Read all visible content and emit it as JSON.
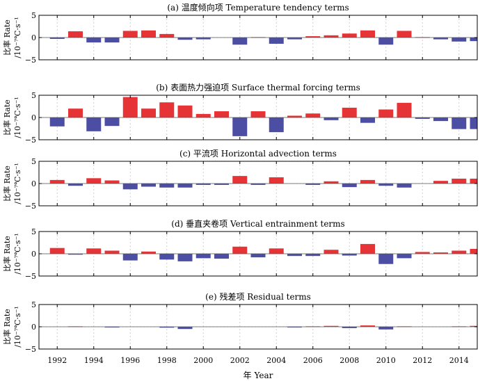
{
  "figure": {
    "x_axis_label": "年 Year",
    "y_axis_label_line1": "比率 Rate",
    "y_axis_label_line2": "/10⁻⁷℃·s⁻¹",
    "positive_color": "#e63336",
    "negative_color": "#4b4ea3"
  },
  "chart_data": [
    {
      "type": "bar",
      "title": "(a) 温度倾向项 Temperature tendency terms",
      "xlabel": "年 Year",
      "ylabel": "比率 Rate /10⁻⁷℃·s⁻¹",
      "ylim": [
        -5,
        5
      ],
      "yticks": [
        -5,
        0,
        5
      ],
      "xlim": [
        1991,
        2015
      ],
      "xticks": [
        1992,
        1994,
        1996,
        1998,
        2000,
        2002,
        2004,
        2006,
        2008,
        2010,
        2012,
        2014
      ],
      "grid": true,
      "x": [
        1992,
        1993,
        1994,
        1995,
        1996,
        1997,
        1998,
        1999,
        2000,
        2001,
        2002,
        2003,
        2004,
        2005,
        2006,
        2007,
        2008,
        2009,
        2010,
        2011,
        2012,
        2013,
        2014,
        2015
      ],
      "values": [
        -0.3,
        1.4,
        -1.1,
        -1.1,
        1.5,
        1.6,
        0.8,
        -0.5,
        -0.4,
        0.0,
        -1.6,
        0.1,
        -1.4,
        -0.4,
        0.3,
        0.5,
        0.9,
        1.6,
        -1.6,
        1.5,
        0.1,
        -0.4,
        -0.9,
        -0.8
      ]
    },
    {
      "type": "bar",
      "title": "(b) 表面热力强迫项 Surface thermal forcing terms",
      "xlabel": "年 Year",
      "ylabel": "比率 Rate /10⁻⁷℃·s⁻¹",
      "ylim": [
        -5,
        5
      ],
      "yticks": [
        -5,
        0,
        5
      ],
      "xlim": [
        1991,
        2015
      ],
      "xticks": [
        1992,
        1994,
        1996,
        1998,
        2000,
        2002,
        2004,
        2006,
        2008,
        2010,
        2012,
        2014
      ],
      "grid": true,
      "x": [
        1992,
        1993,
        1994,
        1995,
        1996,
        1997,
        1998,
        1999,
        2000,
        2001,
        2002,
        2003,
        2004,
        2005,
        2006,
        2007,
        2008,
        2009,
        2010,
        2011,
        2012,
        2013,
        2014,
        2015
      ],
      "values": [
        -2.0,
        2.0,
        -3.1,
        -1.9,
        4.6,
        2.0,
        3.4,
        2.7,
        0.8,
        1.4,
        -4.2,
        1.4,
        -3.3,
        0.4,
        0.9,
        -0.6,
        2.2,
        -1.2,
        1.8,
        3.3,
        -0.3,
        -0.8,
        -2.6,
        -2.6
      ]
    },
    {
      "type": "bar",
      "title": "(c) 平流项 Horizontal advection terms",
      "xlabel": "年 Year",
      "ylabel": "比率 Rate /10⁻⁷℃·s⁻¹",
      "ylim": [
        -5,
        5
      ],
      "yticks": [
        -5,
        0,
        5
      ],
      "xlim": [
        1991,
        2015
      ],
      "xticks": [
        1992,
        1994,
        1996,
        1998,
        2000,
        2002,
        2004,
        2006,
        2008,
        2010,
        2012,
        2014
      ],
      "grid": true,
      "x": [
        1992,
        1993,
        1994,
        1995,
        1996,
        1997,
        1998,
        1999,
        2000,
        2001,
        2002,
        2003,
        2004,
        2005,
        2006,
        2007,
        2008,
        2009,
        2010,
        2011,
        2012,
        2013,
        2014,
        2015
      ],
      "values": [
        0.8,
        -0.5,
        1.2,
        0.7,
        -1.3,
        -0.7,
        -0.9,
        -0.9,
        -0.3,
        -0.3,
        1.7,
        -0.3,
        1.4,
        0.0,
        -0.3,
        0.5,
        -0.8,
        0.8,
        -0.5,
        -0.9,
        0.0,
        0.6,
        1.1,
        1.1
      ]
    },
    {
      "type": "bar",
      "title": "(d) 垂直夹卷项 Vertical entrainment terms",
      "xlabel": "年 Year",
      "ylabel": "比率 Rate /10⁻⁷℃·s⁻¹",
      "ylim": [
        -5,
        5
      ],
      "yticks": [
        -5,
        0,
        5
      ],
      "xlim": [
        1991,
        2015
      ],
      "xticks": [
        1992,
        1994,
        1996,
        1998,
        2000,
        2002,
        2004,
        2006,
        2008,
        2010,
        2012,
        2014
      ],
      "grid": true,
      "x": [
        1992,
        1993,
        1994,
        1995,
        1996,
        1997,
        1998,
        1999,
        2000,
        2001,
        2002,
        2003,
        2004,
        2005,
        2006,
        2007,
        2008,
        2009,
        2010,
        2011,
        2012,
        2013,
        2014,
        2015
      ],
      "values": [
        1.3,
        -0.2,
        1.2,
        0.7,
        -1.5,
        0.5,
        -1.3,
        -1.7,
        -1.0,
        -1.1,
        1.6,
        -0.8,
        1.2,
        -0.5,
        -0.5,
        0.9,
        -0.4,
        2.2,
        -2.3,
        -1.0,
        0.4,
        0.3,
        0.7,
        1.1
      ]
    },
    {
      "type": "bar",
      "title": "(e) 残差项 Residual terms",
      "xlabel": "年 Year",
      "ylabel": "比率 Rate /10⁻⁷℃·s⁻¹",
      "ylim": [
        -5,
        5
      ],
      "yticks": [
        -5,
        0,
        5
      ],
      "xlim": [
        1991,
        2015
      ],
      "xticks": [
        1992,
        1994,
        1996,
        1998,
        2000,
        2002,
        2004,
        2006,
        2008,
        2010,
        2012,
        2014
      ],
      "grid": true,
      "x": [
        1992,
        1993,
        1994,
        1995,
        1996,
        1997,
        1998,
        1999,
        2000,
        2001,
        2002,
        2003,
        2004,
        2005,
        2006,
        2007,
        2008,
        2009,
        2010,
        2011,
        2012,
        2013,
        2014,
        2015
      ],
      "values": [
        0.0,
        0.1,
        0.0,
        -0.1,
        0.0,
        0.0,
        -0.2,
        -0.5,
        0.0,
        0.0,
        0.0,
        0.0,
        0.0,
        -0.1,
        0.1,
        0.2,
        -0.3,
        0.3,
        -0.6,
        0.1,
        0.0,
        0.0,
        0.1,
        0.2
      ]
    }
  ]
}
